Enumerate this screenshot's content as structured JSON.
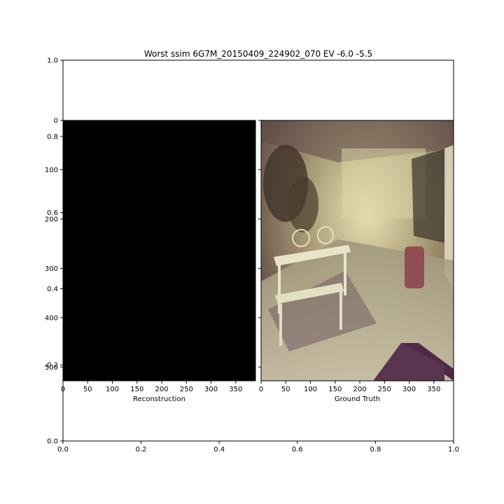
{
  "chart_data": [
    {
      "type": "axes",
      "title": "Worst ssim 6G7M_20150409_224902_070 EV -6.0 -5.5",
      "xlim": [
        0.0,
        1.0
      ],
      "ylim": [
        0.0,
        1.0
      ],
      "xticks": [
        "0.0",
        "0.2",
        "0.4",
        "0.6",
        "0.8",
        "1.0"
      ],
      "yticks": [
        "0.0",
        "0.2",
        "0.4",
        "0.6",
        "0.8",
        "1.0"
      ]
    },
    {
      "type": "image",
      "xlabel": "Reconstruction",
      "xlim": [
        0,
        390
      ],
      "ylim": [
        0,
        528
      ],
      "xticks": [
        "0",
        "50",
        "100",
        "150",
        "200",
        "250",
        "300",
        "350"
      ],
      "yticks": [
        "0",
        "100",
        "200",
        "300",
        "400",
        "500"
      ],
      "content": "black-image"
    },
    {
      "type": "image",
      "xlabel": "Ground Truth",
      "xlim": [
        0,
        390
      ],
      "ylim": [
        0,
        528
      ],
      "xticks": [
        "0",
        "50",
        "100",
        "150",
        "200",
        "250",
        "300",
        "350"
      ],
      "content": "dim-indoor-photo-dining-room"
    }
  ]
}
